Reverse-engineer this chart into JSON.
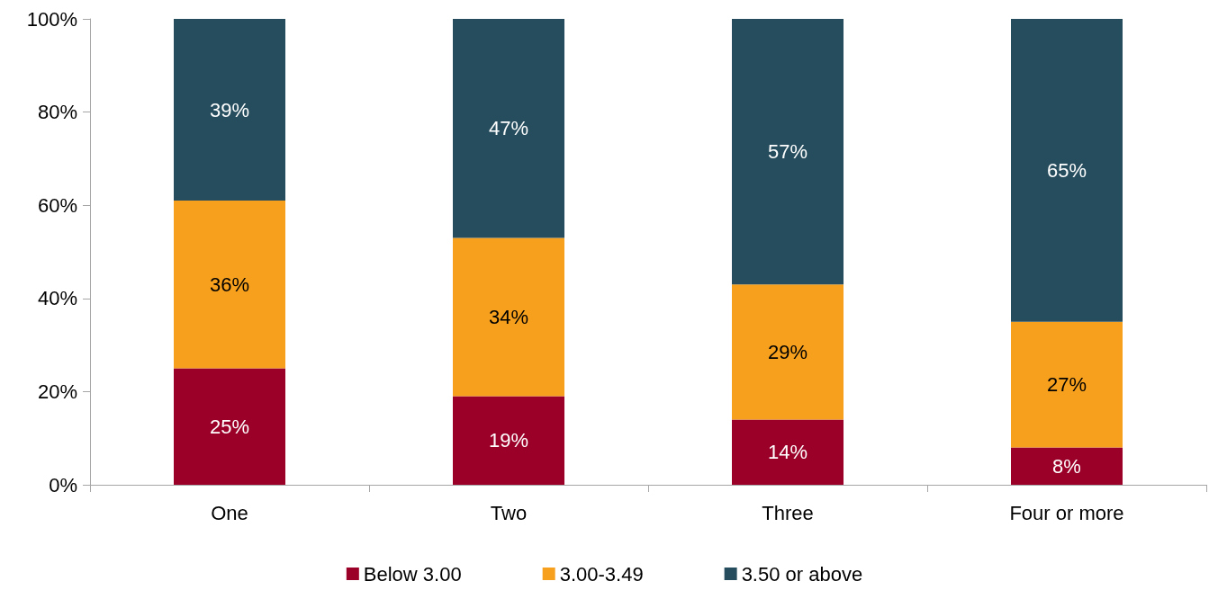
{
  "chart_data": {
    "type": "bar",
    "stacked": true,
    "categories": [
      "One",
      "Two",
      "Three",
      "Four or more"
    ],
    "series": [
      {
        "name": "Below 3.00",
        "color": "#9b0028",
        "values": [
          25,
          19,
          14,
          8
        ],
        "value_labels": [
          "25%",
          "19%",
          "14%",
          "8%"
        ]
      },
      {
        "name": "3.00-3.49",
        "color": "#f7a01e",
        "values": [
          36,
          34,
          29,
          27
        ],
        "value_labels": [
          "36%",
          "34%",
          "29%",
          "27%"
        ]
      },
      {
        "name": "3.50 or above",
        "color": "#264d5d",
        "values": [
          39,
          47,
          57,
          65
        ],
        "value_labels": [
          "39%",
          "47%",
          "57%",
          "65%"
        ]
      }
    ],
    "ylim": [
      0,
      100
    ],
    "yticks": [
      {
        "value": 0,
        "label": "0%"
      },
      {
        "value": 20,
        "label": "20%"
      },
      {
        "value": 40,
        "label": "40%"
      },
      {
        "value": 60,
        "label": "60%"
      },
      {
        "value": 80,
        "label": "80%"
      },
      {
        "value": 100,
        "label": "100%"
      }
    ],
    "grid": false,
    "legend": "bottom"
  }
}
